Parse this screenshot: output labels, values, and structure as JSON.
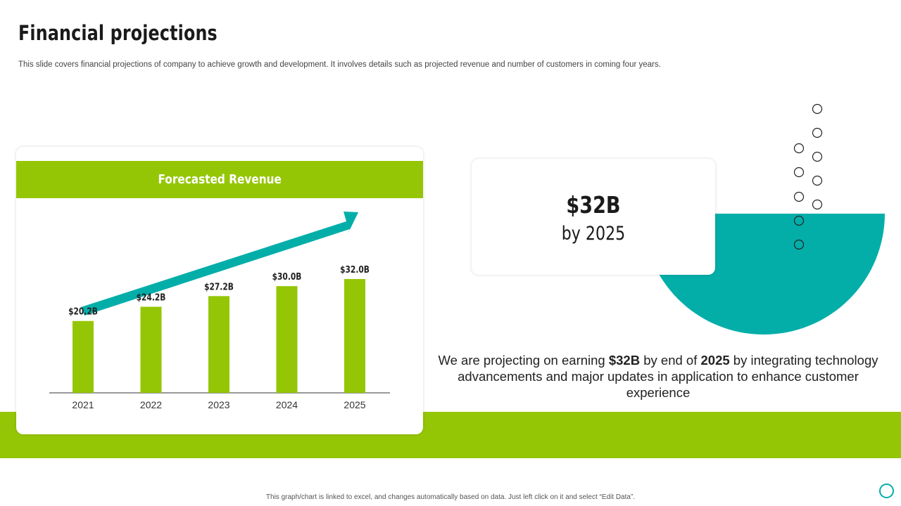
{
  "title": "Financial projections",
  "subtitle": "This slide covers financial projections of company to achieve growth and development. It involves details such as projected revenue and number of customers in coming four years.",
  "chart_card": {
    "header": "Forecasted Revenue"
  },
  "chart_data": {
    "type": "bar",
    "title": "Forecasted Revenue",
    "categories": [
      "2021",
      "2022",
      "2023",
      "2024",
      "2025"
    ],
    "values": [
      20.2,
      24.2,
      27.2,
      30.0,
      32.0
    ],
    "data_labels": [
      "$20.2B",
      "$24.2B",
      "$27.2B",
      "$30.0B",
      "$32.0B"
    ],
    "unit": "$B",
    "xlabel": "",
    "ylabel": "",
    "ylim": [
      0,
      40
    ],
    "grid": false,
    "trend_arrow": "upward",
    "bar_color": "#95c606",
    "arrow_color": "#03aea9"
  },
  "stat_card": {
    "value": "$32B",
    "caption": "by 2025"
  },
  "statement": {
    "part1": "We are projecting on earning ",
    "bold1": "$32B",
    "part2": " by end of ",
    "bold2": "2025",
    "part3": " by integrating technology advancements and major updates in application to enhance customer experience"
  },
  "footnote": "This graph/chart is linked to excel, and changes automatically based on data. Just left click on it and select “Edit Data”.",
  "colors": {
    "accent_green": "#95c606",
    "accent_teal": "#03aea9"
  }
}
